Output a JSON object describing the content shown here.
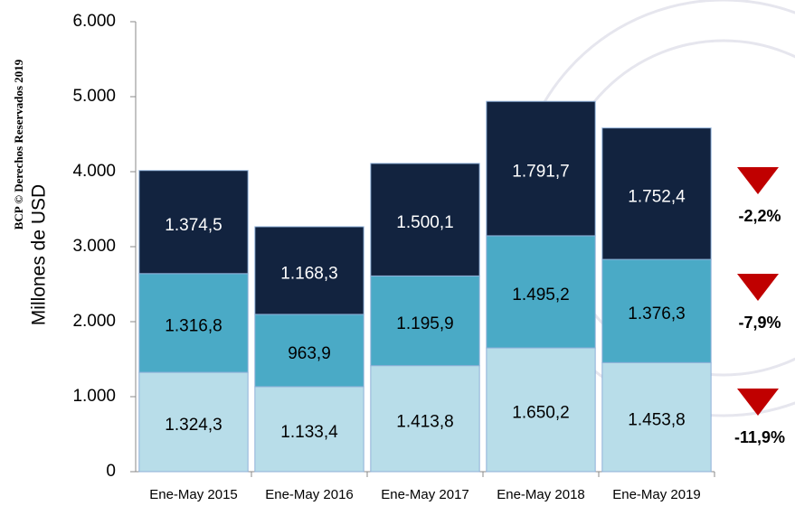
{
  "chart_data": {
    "type": "stacked_bar",
    "side_label": "BCP © Derechos Reservados 2019",
    "y_label": "Millones de  USD",
    "categories": [
      "Ene-May 2015",
      "Ene-May 2016",
      "Ene-May 2017",
      "Ene-May 2018",
      "Ene-May 2019"
    ],
    "series": [
      {
        "color": "#b8dde9",
        "label_color": "#000000",
        "values": [
          1324.3,
          1133.4,
          1413.8,
          1650.2,
          1453.8
        ],
        "value_labels": [
          "1.324,3",
          "1.133,4",
          "1.413,8",
          "1.650,2",
          "1.453,8"
        ]
      },
      {
        "color": "#4aaac6",
        "label_color": "#000000",
        "values": [
          1316.8,
          963.9,
          1195.9,
          1495.2,
          1376.3
        ],
        "value_labels": [
          "1.316,8",
          "963,9",
          "1.195,9",
          "1.495,2",
          "1.376,3"
        ]
      },
      {
        "color": "#12233f",
        "label_color": "#ffffff",
        "values": [
          1374.5,
          1168.3,
          1500.1,
          1791.7,
          1752.4
        ],
        "value_labels": [
          "1.374,5",
          "1.168,3",
          "1.500,1",
          "1.791,7",
          "1.752,4"
        ]
      }
    ],
    "ylim": [
      0,
      6000
    ],
    "yticks": [
      0,
      {
        "value": 1000,
        "label": "1.000"
      },
      {
        "value": 2000,
        "label": "2.000"
      },
      {
        "value": 3000,
        "label": "3.000"
      },
      {
        "value": 4000,
        "label": "4.000"
      },
      {
        "value": 5000,
        "label": "5.000"
      },
      {
        "value": 6000,
        "label": "6.000"
      }
    ],
    "annotations": [
      "-2,2%",
      "-7,9%",
      "-11,9%"
    ],
    "annotation_color": "#c00000"
  }
}
